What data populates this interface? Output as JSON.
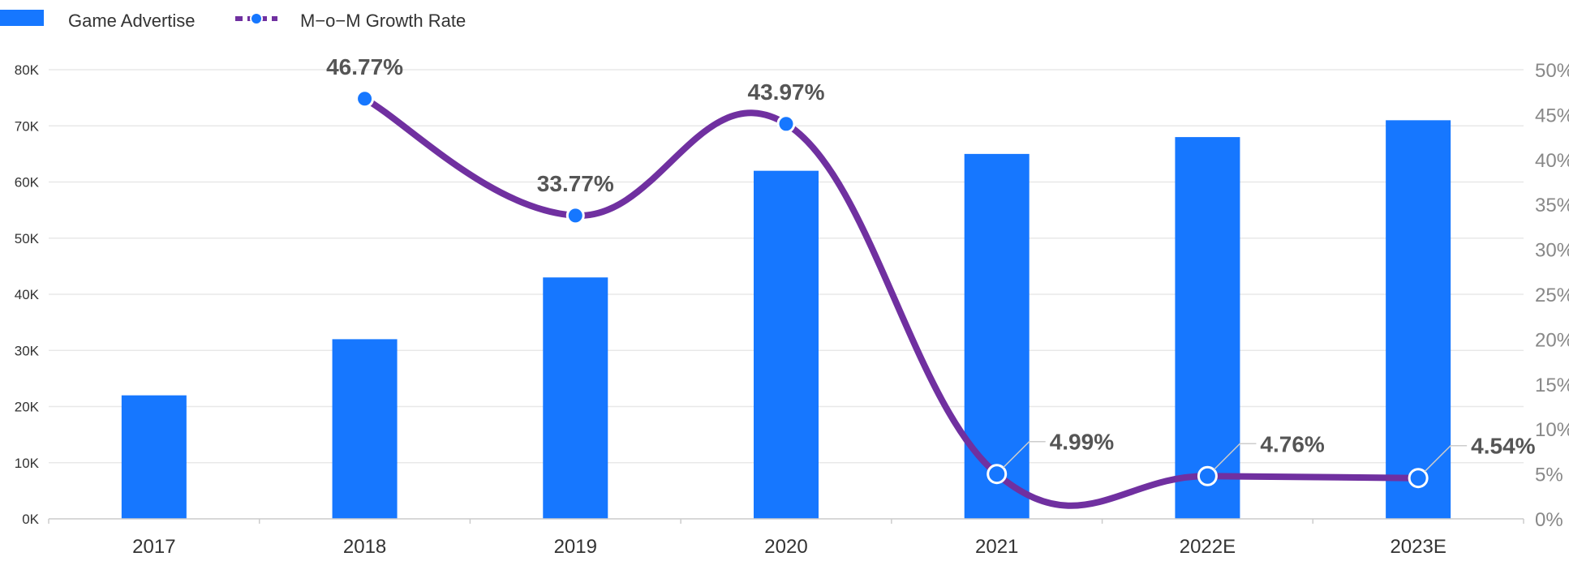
{
  "legend": {
    "bar_label": "Game Advertise",
    "line_label": "M−o−M Growth Rate"
  },
  "colors": {
    "bar": "#1677FF",
    "line": "#7030A0",
    "marker": "#1677FF",
    "grid": "#E8E8E8"
  },
  "chart_data": {
    "type": "bar",
    "categories": [
      "2017",
      "2018",
      "2019",
      "2020",
      "2021",
      "2022E",
      "2023E"
    ],
    "series": [
      {
        "name": "Game Advertise",
        "type": "bar",
        "axis": "left",
        "values": [
          22000,
          32000,
          43000,
          62000,
          65000,
          68000,
          71000
        ]
      },
      {
        "name": "M−o−M Growth Rate",
        "type": "line",
        "axis": "right",
        "values": [
          null,
          46.77,
          33.77,
          43.97,
          4.99,
          4.76,
          4.54
        ],
        "labels": [
          "",
          "46.77%",
          "33.77%",
          "43.97%",
          "4.99%",
          "4.76%",
          "4.54%"
        ]
      }
    ],
    "y_left": {
      "range": [
        0,
        80000
      ],
      "ticks": [
        0,
        10000,
        20000,
        30000,
        40000,
        50000,
        60000,
        70000,
        80000
      ],
      "tick_labels": [
        "0K",
        "10K",
        "20K",
        "30K",
        "40K",
        "50K",
        "60K",
        "70K",
        "80K"
      ]
    },
    "y_right": {
      "range": [
        0,
        50
      ],
      "ticks": [
        0,
        5,
        10,
        15,
        20,
        25,
        30,
        35,
        40,
        45,
        50
      ],
      "tick_labels": [
        "0%",
        "5%",
        "10%",
        "15%",
        "20%",
        "25%",
        "30%",
        "35%",
        "40%",
        "45%",
        "50%"
      ]
    },
    "grid": true,
    "legend_position": "top-left"
  }
}
